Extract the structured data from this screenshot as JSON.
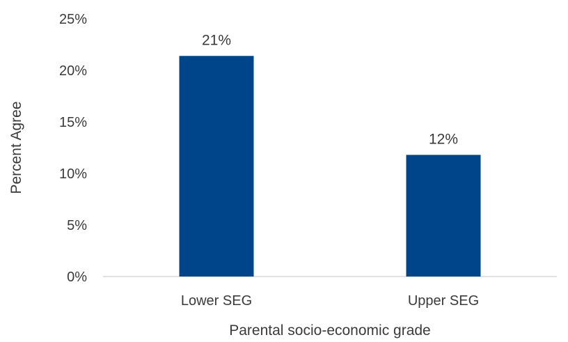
{
  "chart_data": {
    "type": "bar",
    "categories": [
      "Lower SEG",
      "Upper SEG"
    ],
    "values": [
      21.4,
      11.8
    ],
    "data_labels": [
      "21%",
      "12%"
    ],
    "xlabel": "Parental socio-economic grade",
    "ylabel": "Percent Agree",
    "ylim": [
      0,
      25
    ],
    "y_ticks": [
      0,
      5,
      10,
      15,
      20,
      25
    ],
    "y_tick_labels": [
      "0%",
      "5%",
      "10%",
      "15%",
      "20%",
      "25%"
    ],
    "grid": false,
    "legend": "none",
    "colors": {
      "bar": "#00448a",
      "axis_line": "#d9d9d9",
      "text": "#3a3a3a"
    }
  }
}
